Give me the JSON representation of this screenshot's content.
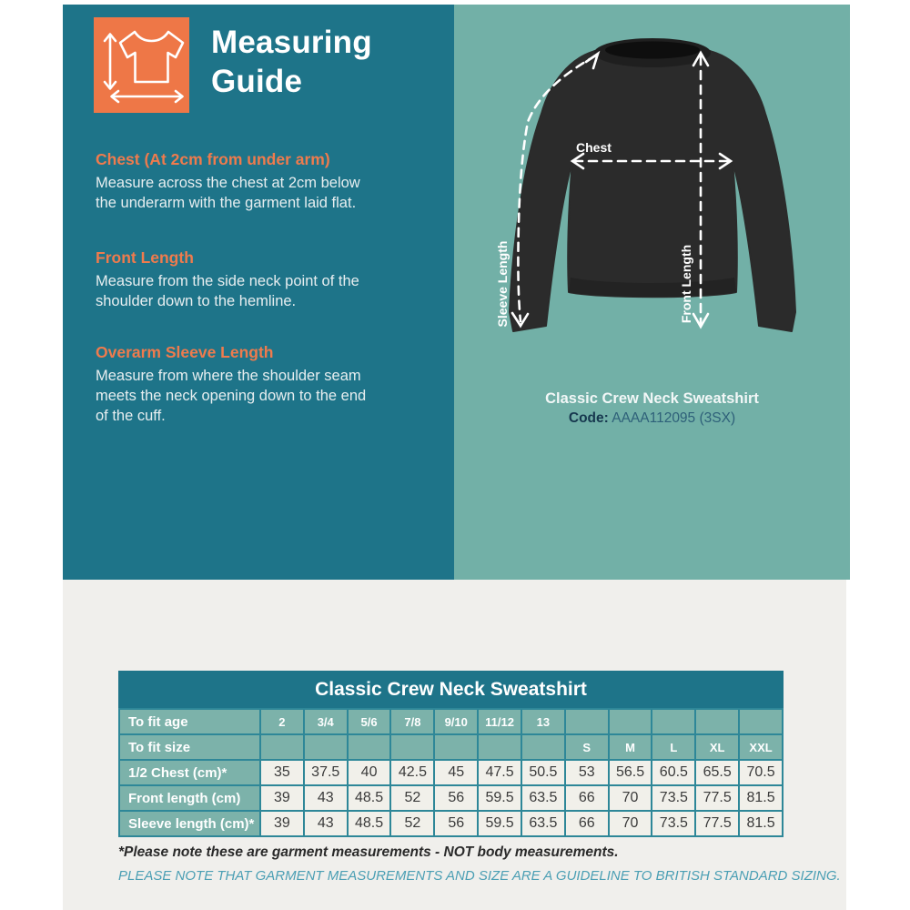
{
  "header": {
    "title_line1": "Measuring",
    "title_line2": "Guide"
  },
  "sections": [
    {
      "heading": "Chest (At 2cm from under arm)",
      "lines": [
        "Measure across the chest at 2cm below",
        "the underarm with the garment laid flat."
      ]
    },
    {
      "heading": "Front Length",
      "lines": [
        "Measure from the side neck point of the",
        "shoulder down to the hemline."
      ]
    },
    {
      "heading": "Overarm Sleeve Length",
      "lines": [
        "Measure from where the shoulder seam",
        "meets the neck opening down to the end",
        "of the cuff."
      ]
    }
  ],
  "diagram": {
    "labels": {
      "chest": "Chest",
      "front_length": "Front Length",
      "sleeve_length": "Sleeve Length"
    }
  },
  "product": {
    "name": "Classic Crew Neck Sweatshirt",
    "code_label": "Code:",
    "code_value": "AAAA112095 (3SX)"
  },
  "size_table": {
    "title": "Classic Crew Neck Sweatshirt",
    "age_row_label": "To fit age",
    "size_row_label": "To fit size",
    "ages": [
      "2",
      "3/4",
      "5/6",
      "7/8",
      "9/10",
      "11/12",
      "13",
      "",
      "",
      "",
      "",
      ""
    ],
    "sizes": [
      "",
      "",
      "",
      "",
      "",
      "",
      "",
      "S",
      "M",
      "L",
      "XL",
      "XXL"
    ],
    "measurement_rows": [
      {
        "label": "1/2 Chest (cm)*",
        "values": [
          "35",
          "37.5",
          "40",
          "42.5",
          "45",
          "47.5",
          "50.5",
          "53",
          "56.5",
          "60.5",
          "65.5",
          "70.5"
        ]
      },
      {
        "label": "Front length (cm)",
        "values": [
          "39",
          "43",
          "48.5",
          "52",
          "56",
          "59.5",
          "63.5",
          "66",
          "70",
          "73.5",
          "77.5",
          "81.5"
        ]
      },
      {
        "label": "Sleeve length (cm)*",
        "values": [
          "39",
          "43",
          "48.5",
          "52",
          "56",
          "59.5",
          "63.5",
          "66",
          "70",
          "73.5",
          "77.5",
          "81.5"
        ]
      }
    ]
  },
  "notes": {
    "garment_note": "*Please note these are garment measurements - NOT body measurements.",
    "sizing_note": "PLEASE NOTE THAT GARMENT MEASUREMENTS AND SIZE ARE A GUIDELINE TO BRITISH STANDARD SIZING."
  },
  "colors": {
    "dark_teal": "#1e7489",
    "seafoam": "#72b0a7",
    "orange": "#ee7747",
    "heading_orange": "#ef7b4d",
    "table_border": "#2e8798",
    "label_cell": "#7cb2aa",
    "cell_bg": "#f1f0ea",
    "bottom_bg": "#f0efec",
    "note_teal": "#4b9fb4"
  }
}
